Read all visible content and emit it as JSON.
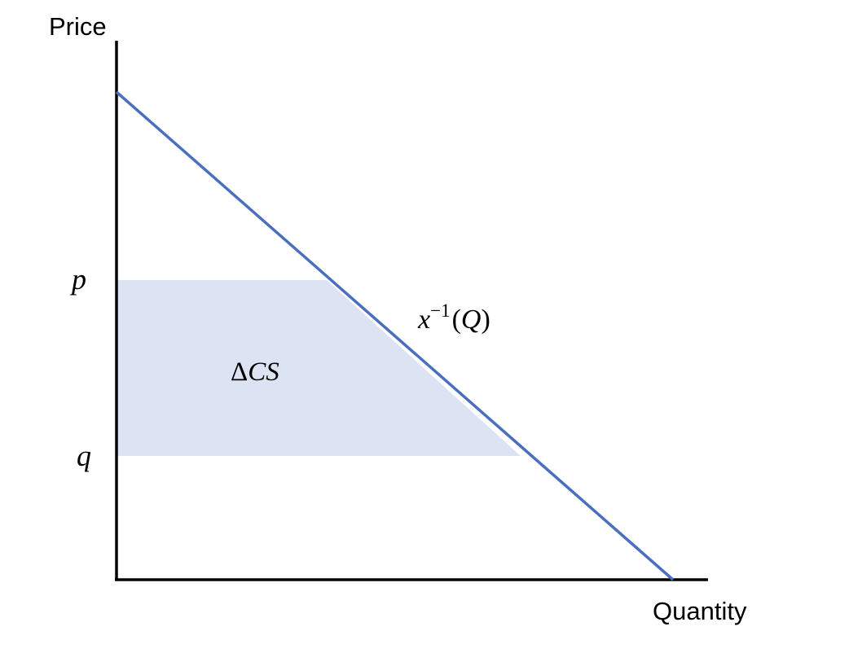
{
  "diagram": {
    "y_axis_title": "Price",
    "x_axis_title": "Quantity",
    "tick_p": "p",
    "tick_q": "q",
    "curve_label": {
      "base": "x",
      "superscript": "−1",
      "open": "(",
      "arg": "Q",
      "close": ")"
    },
    "area_label": {
      "delta": "Δ",
      "text": "CS"
    }
  },
  "colors": {
    "curve": "#4a6fbf",
    "shaded_area": "#dce3f2",
    "axes": "#000000"
  }
}
